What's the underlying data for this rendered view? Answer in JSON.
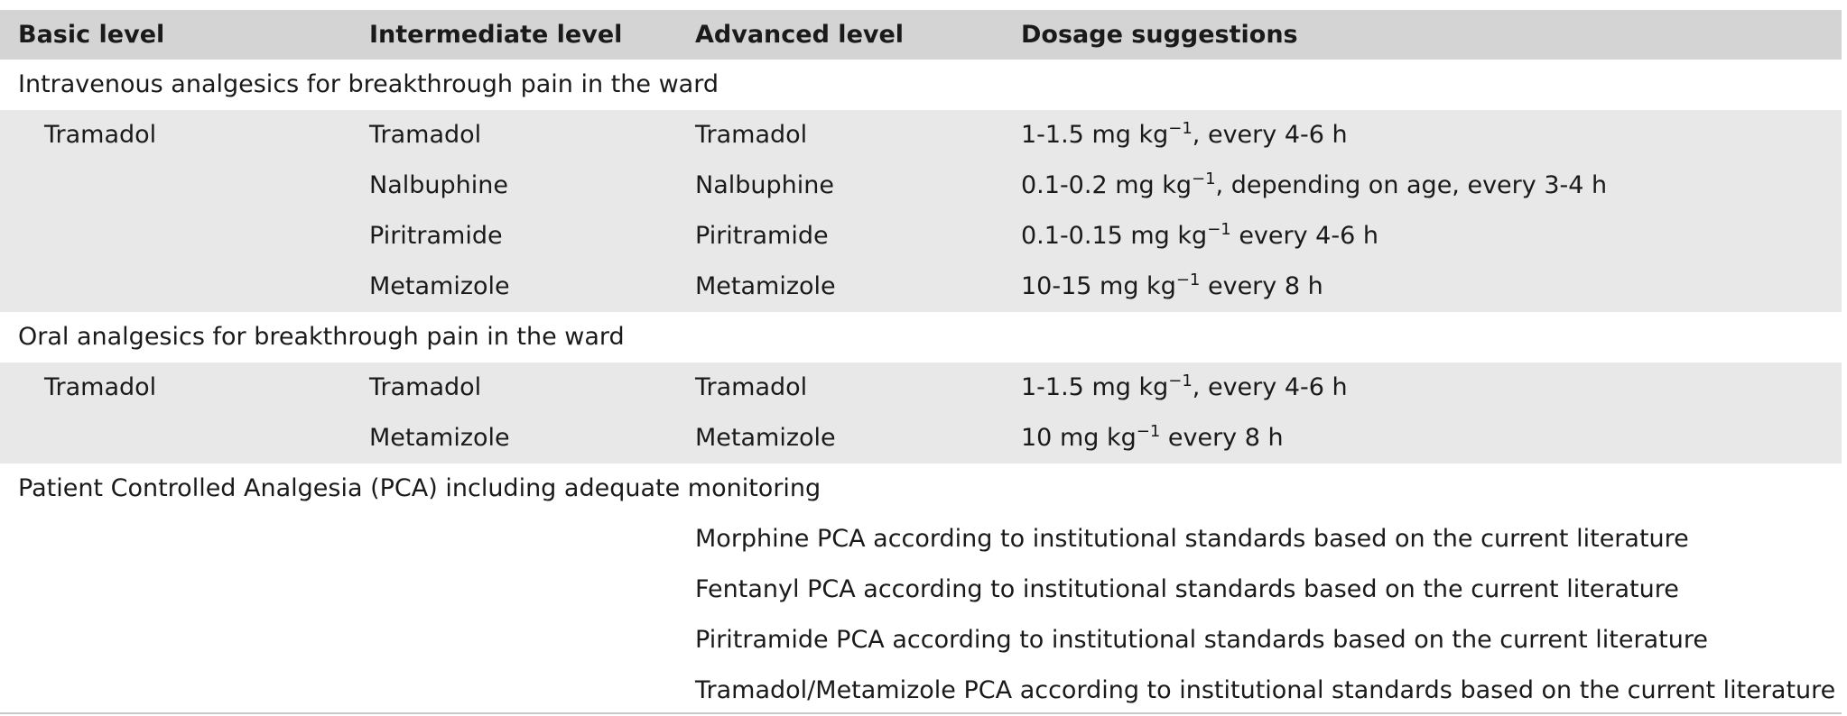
{
  "header": {
    "col1": "Basic level",
    "col2": "Intermediate level",
    "col3": "Advanced level",
    "col4": "Dosage suggestions"
  },
  "sections": [
    {
      "title": "Intravenous analgesics for breakthrough pain in the ward",
      "rows": [
        {
          "basic": "Tramadol",
          "intermediate": "Tramadol",
          "advanced": "Tramadol",
          "dose_pre": "1-1.5 mg kg",
          "dose_sup": "−1",
          "dose_post": ", every 4-6 h"
        },
        {
          "basic": "",
          "intermediate": "Nalbuphine",
          "advanced": "Nalbuphine",
          "dose_pre": "0.1-0.2 mg kg",
          "dose_sup": "−1",
          "dose_post": ", depending on age, every 3-4 h"
        },
        {
          "basic": "",
          "intermediate": "Piritramide",
          "advanced": "Piritramide",
          "dose_pre": "0.1-0.15 mg kg",
          "dose_sup": "−1",
          "dose_post": " every 4-6 h"
        },
        {
          "basic": "",
          "intermediate": "Metamizole",
          "advanced": "Metamizole",
          "dose_pre": "10-15 mg kg",
          "dose_sup": "−1",
          "dose_post": " every 8 h"
        }
      ]
    },
    {
      "title": "Oral analgesics for breakthrough pain in the ward",
      "rows": [
        {
          "basic": "Tramadol",
          "intermediate": "Tramadol",
          "advanced": "Tramadol",
          "dose_pre": "1-1.5 mg kg",
          "dose_sup": "−1",
          "dose_post": ", every 4-6 h"
        },
        {
          "basic": "",
          "intermediate": "Metamizole",
          "advanced": "Metamizole",
          "dose_pre": "10 mg kg",
          "dose_sup": "−1",
          "dose_post": " every 8 h"
        }
      ]
    },
    {
      "title": "Patient Controlled Analgesia (PCA) including adequate monitoring",
      "pca_rows": [
        "Morphine PCA according to institutional standards based on the current literature",
        "Fentanyl PCA according to institutional standards based on the current literature",
        "Piritramide PCA according to institutional standards based on the current literature",
        "Tramadol/Metamizole PCA according to institutional standards based on the current literature"
      ]
    }
  ],
  "colors": {
    "header_bg": "#d4d4d4",
    "group_bg": "#e8e8e8",
    "text": "#1a1a1a"
  }
}
